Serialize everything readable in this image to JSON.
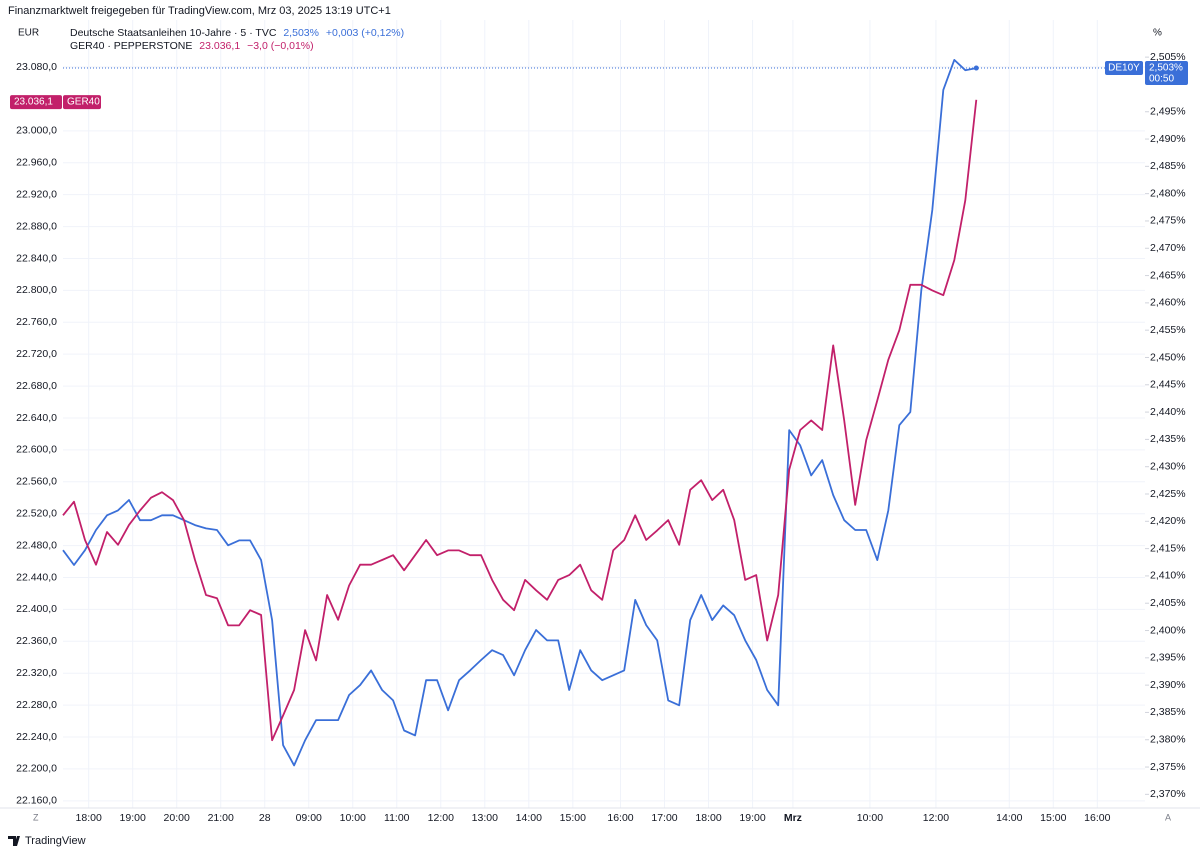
{
  "chart_data": {
    "type": "line",
    "header": "Finanzmarktwelt freigegeben für TradingView.com, Mrz 03, 2025 13:19 UTC+1",
    "y_unit": "EUR",
    "y2_unit": "%",
    "footer": "TradingView",
    "x_left_marker": "Z",
    "x_right_marker": "A",
    "grid": true,
    "x": [
      0,
      3,
      6,
      9,
      12,
      15,
      18,
      21,
      24,
      27,
      30,
      33,
      36,
      39,
      42,
      45,
      48,
      51,
      54,
      57,
      60,
      63,
      66,
      69,
      72,
      75,
      78,
      81,
      84,
      87,
      90,
      93,
      96,
      99,
      102,
      105,
      108,
      111,
      114,
      117,
      120,
      123,
      126,
      129,
      132,
      135,
      138,
      141,
      144,
      147,
      150,
      153,
      156,
      159,
      162,
      165,
      168,
      171,
      174,
      177,
      180,
      183,
      186,
      189,
      192,
      195,
      198,
      201,
      204,
      207,
      210,
      213,
      216,
      219,
      222,
      225,
      228,
      231,
      234,
      237,
      240,
      243,
      246,
      249
    ],
    "xlim": [
      0,
      295
    ],
    "xticks": [
      {
        "value": 7,
        "label": "18:00"
      },
      {
        "value": 19,
        "label": "19:00"
      },
      {
        "value": 31,
        "label": "20:00"
      },
      {
        "value": 43,
        "label": "21:00"
      },
      {
        "value": 55,
        "label": "28"
      },
      {
        "value": 67,
        "label": "09:00"
      },
      {
        "value": 79,
        "label": "10:00"
      },
      {
        "value": 91,
        "label": "11:00"
      },
      {
        "value": 103,
        "label": "12:00"
      },
      {
        "value": 115,
        "label": "13:00"
      },
      {
        "value": 127,
        "label": "14:00"
      },
      {
        "value": 139,
        "label": "15:00"
      },
      {
        "value": 152,
        "label": "16:00"
      },
      {
        "value": 164,
        "label": "17:00"
      },
      {
        "value": 176,
        "label": "18:00"
      },
      {
        "value": 188,
        "label": "19:00"
      },
      {
        "value": 199,
        "label": "Mrz"
      },
      {
        "value": 220,
        "label": "10:00"
      },
      {
        "value": 238,
        "label": "12:00"
      },
      {
        "value": 258,
        "label": "14:00"
      },
      {
        "value": 270,
        "label": "15:00"
      },
      {
        "value": 282,
        "label": "16:00"
      }
    ],
    "ylim": [
      22151,
      23139
    ],
    "yticks": [
      {
        "value": 22160,
        "label": "22.160,0"
      },
      {
        "value": 22200,
        "label": "22.200,0"
      },
      {
        "value": 22240,
        "label": "22.240,0"
      },
      {
        "value": 22280,
        "label": "22.280,0"
      },
      {
        "value": 22320,
        "label": "22.320,0"
      },
      {
        "value": 22360,
        "label": "22.360,0"
      },
      {
        "value": 22400,
        "label": "22.400,0"
      },
      {
        "value": 22440,
        "label": "22.440,0"
      },
      {
        "value": 22480,
        "label": "22.480,0"
      },
      {
        "value": 22520,
        "label": "22.520,0"
      },
      {
        "value": 22560,
        "label": "22.560,0"
      },
      {
        "value": 22600,
        "label": "22.600,0"
      },
      {
        "value": 22640,
        "label": "22.640,0"
      },
      {
        "value": 22680,
        "label": "22.680,0"
      },
      {
        "value": 22720,
        "label": "22.720,0"
      },
      {
        "value": 22760,
        "label": "22.760,0"
      },
      {
        "value": 22800,
        "label": "22.800,0"
      },
      {
        "value": 22840,
        "label": "22.840,0"
      },
      {
        "value": 22880,
        "label": "22.880,0"
      },
      {
        "value": 22920,
        "label": "22.920,0"
      },
      {
        "value": 22960,
        "label": "22.960,0"
      },
      {
        "value": 23000,
        "label": "23.000,0"
      },
      {
        "value": 23080,
        "label": "23.080,0"
      }
    ],
    "y2lim": [
      2.3675,
      2.5118
    ],
    "y2ticks": [
      {
        "value": 2.37,
        "label": "2,370%"
      },
      {
        "value": 2.375,
        "label": "2,375%"
      },
      {
        "value": 2.38,
        "label": "2,380%"
      },
      {
        "value": 2.385,
        "label": "2,385%"
      },
      {
        "value": 2.39,
        "label": "2,390%"
      },
      {
        "value": 2.395,
        "label": "2,395%"
      },
      {
        "value": 2.4,
        "label": "2,400%"
      },
      {
        "value": 2.405,
        "label": "2,405%"
      },
      {
        "value": 2.41,
        "label": "2,410%"
      },
      {
        "value": 2.415,
        "label": "2,415%"
      },
      {
        "value": 2.42,
        "label": "2,420%"
      },
      {
        "value": 2.425,
        "label": "2,425%"
      },
      {
        "value": 2.43,
        "label": "2,430%"
      },
      {
        "value": 2.435,
        "label": "2,435%"
      },
      {
        "value": 2.44,
        "label": "2,440%"
      },
      {
        "value": 2.445,
        "label": "2,445%"
      },
      {
        "value": 2.45,
        "label": "2,450%"
      },
      {
        "value": 2.455,
        "label": "2,455%"
      },
      {
        "value": 2.46,
        "label": "2,460%"
      },
      {
        "value": 2.465,
        "label": "2,465%"
      },
      {
        "value": 2.47,
        "label": "2,470%"
      },
      {
        "value": 2.475,
        "label": "2,475%"
      },
      {
        "value": 2.48,
        "label": "2,480%"
      },
      {
        "value": 2.485,
        "label": "2,485%"
      },
      {
        "value": 2.49,
        "label": "2,490%"
      },
      {
        "value": 2.495,
        "label": "2,495%"
      },
      {
        "value": 2.505,
        "label": "2,505%"
      }
    ],
    "series": [
      {
        "name": "Deutsche Staatsanleihen 10-Jahre · 5 · TVC",
        "short": "DE10Y",
        "color": "#3a6fd8",
        "axis": "y2",
        "last": 2.503,
        "last_label": "2,503%",
        "change_label": "+0,003 (+0,12%)",
        "countdown": "00:50",
        "values": [
          2.4147,
          2.412,
          2.4147,
          2.4184,
          2.4211,
          2.422,
          2.4239,
          2.4202,
          2.4202,
          2.4211,
          2.4211,
          2.4202,
          2.4193,
          2.4187,
          2.4184,
          2.4156,
          2.4165,
          2.4165,
          2.4129,
          2.4019,
          2.379,
          2.3753,
          2.3799,
          2.3836,
          2.3836,
          2.3836,
          2.3882,
          2.39,
          2.3927,
          2.3891,
          2.3872,
          2.3817,
          2.3808,
          2.3909,
          2.3909,
          2.3854,
          2.3909,
          2.3927,
          2.3946,
          2.3964,
          2.3955,
          2.3918,
          2.3964,
          2.4001,
          2.3982,
          2.3982,
          2.3891,
          2.3964,
          2.3927,
          2.3909,
          2.3918,
          2.3927,
          2.4056,
          2.401,
          2.3982,
          2.3872,
          2.3863,
          2.4019,
          2.4065,
          2.4019,
          2.4046,
          2.4028,
          2.3982,
          2.3946,
          2.3891,
          2.3863,
          2.4367,
          2.4339,
          2.4284,
          2.4312,
          2.4248,
          2.4202,
          2.4184,
          2.4184,
          2.4129,
          2.422,
          2.4376,
          2.44,
          2.4623,
          2.477,
          2.499,
          2.5045,
          2.5026,
          2.503
        ]
      },
      {
        "name": "GER40 · PEPPERSTONE",
        "short": "GER40",
        "color": "#c2206a",
        "axis": "y",
        "last": 23036.1,
        "last_label": "23.036,1",
        "change_label": "−3,0 (−0,01%)",
        "values": [
          22518,
          22535,
          22487,
          22456,
          22497,
          22481,
          22506,
          22524,
          22540,
          22547,
          22537,
          22512,
          22462,
          22418,
          22414,
          22380,
          22380,
          22399,
          22393,
          22236,
          22267,
          22299,
          22374,
          22336,
          22418,
          22387,
          22430,
          22456,
          22456,
          22462,
          22468,
          22449,
          22468,
          22487,
          22468,
          22474,
          22474,
          22468,
          22468,
          22437,
          22412,
          22399,
          22437,
          22424,
          22412,
          22437,
          22443,
          22456,
          22424,
          22412,
          22474,
          22487,
          22518,
          22487,
          22499,
          22512,
          22481,
          22550,
          22562,
          22537,
          22550,
          22512,
          22437,
          22443,
          22361,
          22418,
          22575,
          22625,
          22637,
          22625,
          22731,
          22637,
          22531,
          22612,
          22662,
          22713,
          22750,
          22807,
          22807,
          22800,
          22794,
          22838,
          22913,
          23039
        ]
      }
    ]
  }
}
